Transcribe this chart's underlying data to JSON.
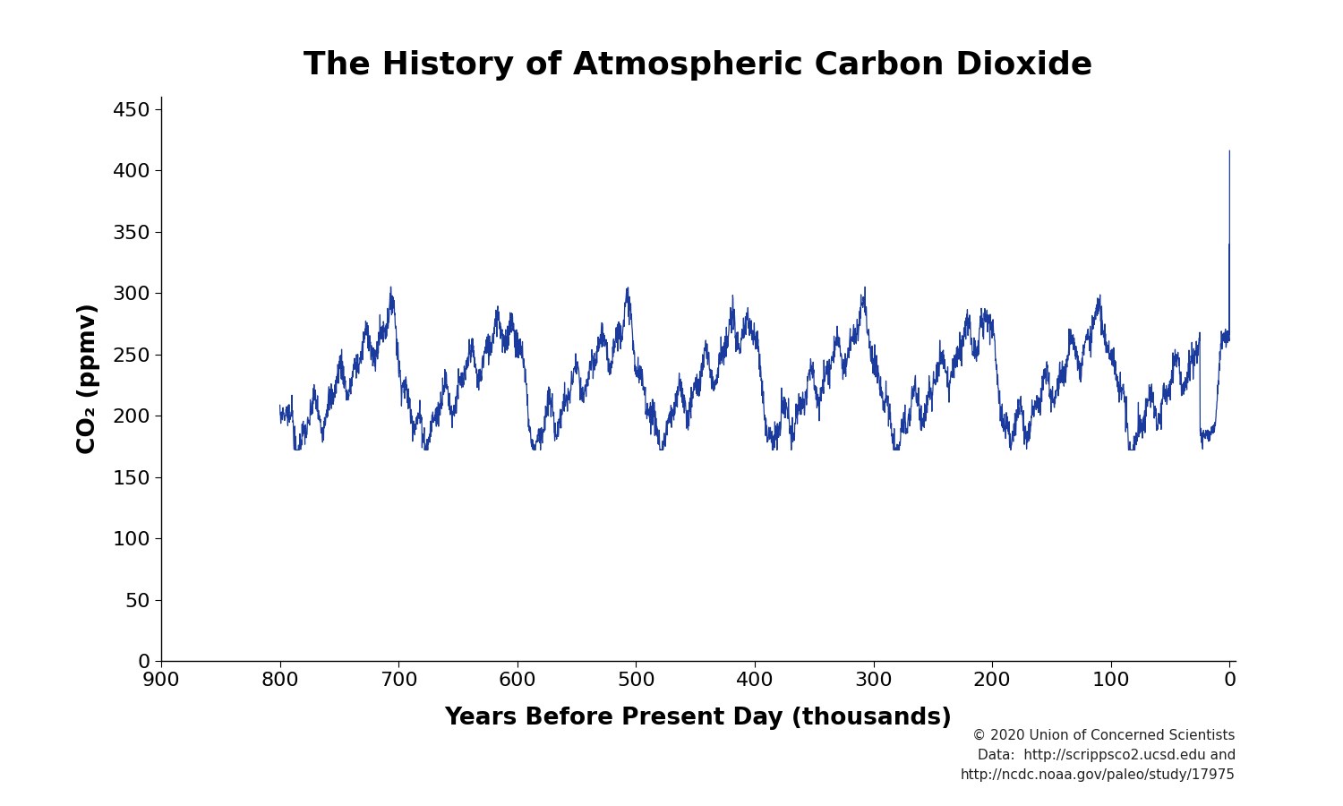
{
  "title": "The History of Atmospheric Carbon Dioxide",
  "xlabel": "Years Before Present Day (thousands)",
  "ylabel": "CO₂ (ppmv)",
  "xlim": [
    900,
    -5
  ],
  "ylim": [
    0,
    460
  ],
  "yticks": [
    0,
    50,
    100,
    150,
    200,
    250,
    300,
    350,
    400,
    450
  ],
  "xticks": [
    900,
    800,
    700,
    600,
    500,
    400,
    300,
    200,
    100,
    0
  ],
  "line_color": "#1a3a9e",
  "background_color": "#ffffff",
  "title_fontsize": 26,
  "label_fontsize": 19,
  "tick_fontsize": 16,
  "annotation_text": "© 2020 Union of Concerned Scientists\nData:  http://scrippsco2.ucsd.edu and\nhttp://ncdc.noaa.gov/paleo/study/17975",
  "annotation_fontsize": 11
}
